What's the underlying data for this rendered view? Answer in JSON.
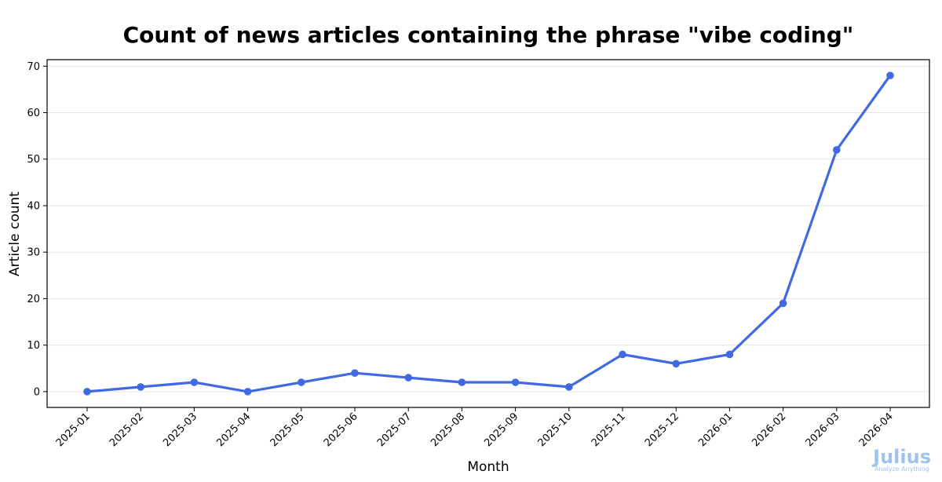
{
  "chart_data": {
    "type": "line",
    "title": "Count of news articles containing the phrase \"vibe coding\"",
    "xlabel": "Month",
    "ylabel": "Article count",
    "categories": [
      "2025-01",
      "2025-02",
      "2025-03",
      "2025-04",
      "2025-05",
      "2025-06",
      "2025-07",
      "2025-08",
      "2025-09",
      "2025-10",
      "2025-11",
      "2025-12",
      "2026-01",
      "2026-02",
      "2026-03",
      "2026-04"
    ],
    "series": [
      {
        "name": "Article count",
        "values": [
          0,
          1,
          2,
          0,
          2,
          4,
          3,
          2,
          2,
          1,
          8,
          6,
          8,
          19,
          52,
          68
        ]
      }
    ],
    "ylim": [
      -3.4,
      71.4
    ],
    "yticks": [
      0,
      10,
      20,
      30,
      40,
      50,
      60,
      70
    ],
    "grid": "horizontal",
    "line_color": "#4169e1",
    "grid_color": "#e6e6e6"
  },
  "watermark": {
    "brand": "Julius",
    "tagline": "Analyze Anything"
  }
}
